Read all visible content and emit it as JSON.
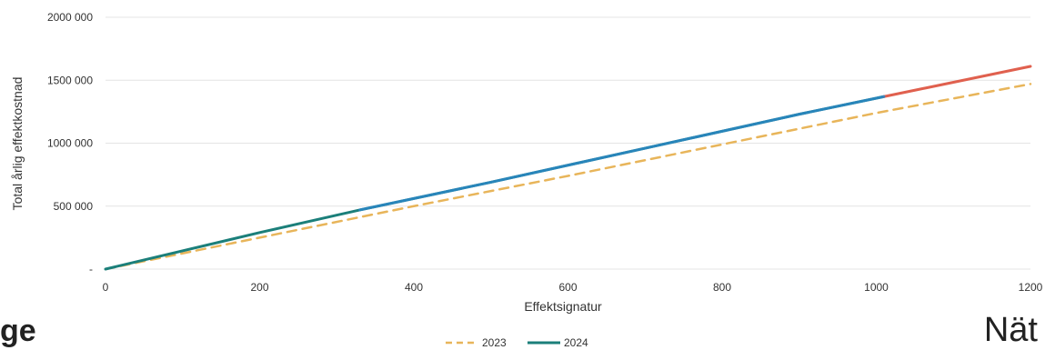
{
  "chart_data": {
    "type": "line",
    "title": "",
    "xlabel": "Effektsignatur",
    "ylabel": "Total årlig effektkostnad",
    "xlim": [
      0,
      1200
    ],
    "ylim": [
      0,
      2000000
    ],
    "x_ticks": [
      "0",
      "200",
      "400",
      "600",
      "800",
      "1000",
      "1200"
    ],
    "y_ticks": [
      "-",
      "500 000",
      "1000 000",
      "1500 000",
      "2000 000"
    ],
    "grid": "horizontal",
    "legend_position": "bottom",
    "series": [
      {
        "name": "2023",
        "style": "dashed",
        "color": "#e8b55a",
        "x": [
          0,
          200,
          400,
          600,
          800,
          1000,
          1200
        ],
        "y": [
          0,
          250000,
          500000,
          740000,
          990000,
          1240000,
          1470000
        ]
      },
      {
        "name": "2024",
        "style": "solid",
        "color": "#1b7f7a",
        "x": [
          0,
          200,
          330,
          500,
          700,
          900,
          1010
        ],
        "y": [
          0,
          290000,
          470000,
          690000,
          960000,
          1230000,
          1370000
        ]
      },
      {
        "name": "",
        "style": "solid",
        "color": "#e0604e",
        "x": [
          1010,
          1200
        ],
        "y": [
          1370000,
          1610000
        ]
      }
    ]
  },
  "corner_left_text": "ge",
  "corner_right_text": "Nät"
}
